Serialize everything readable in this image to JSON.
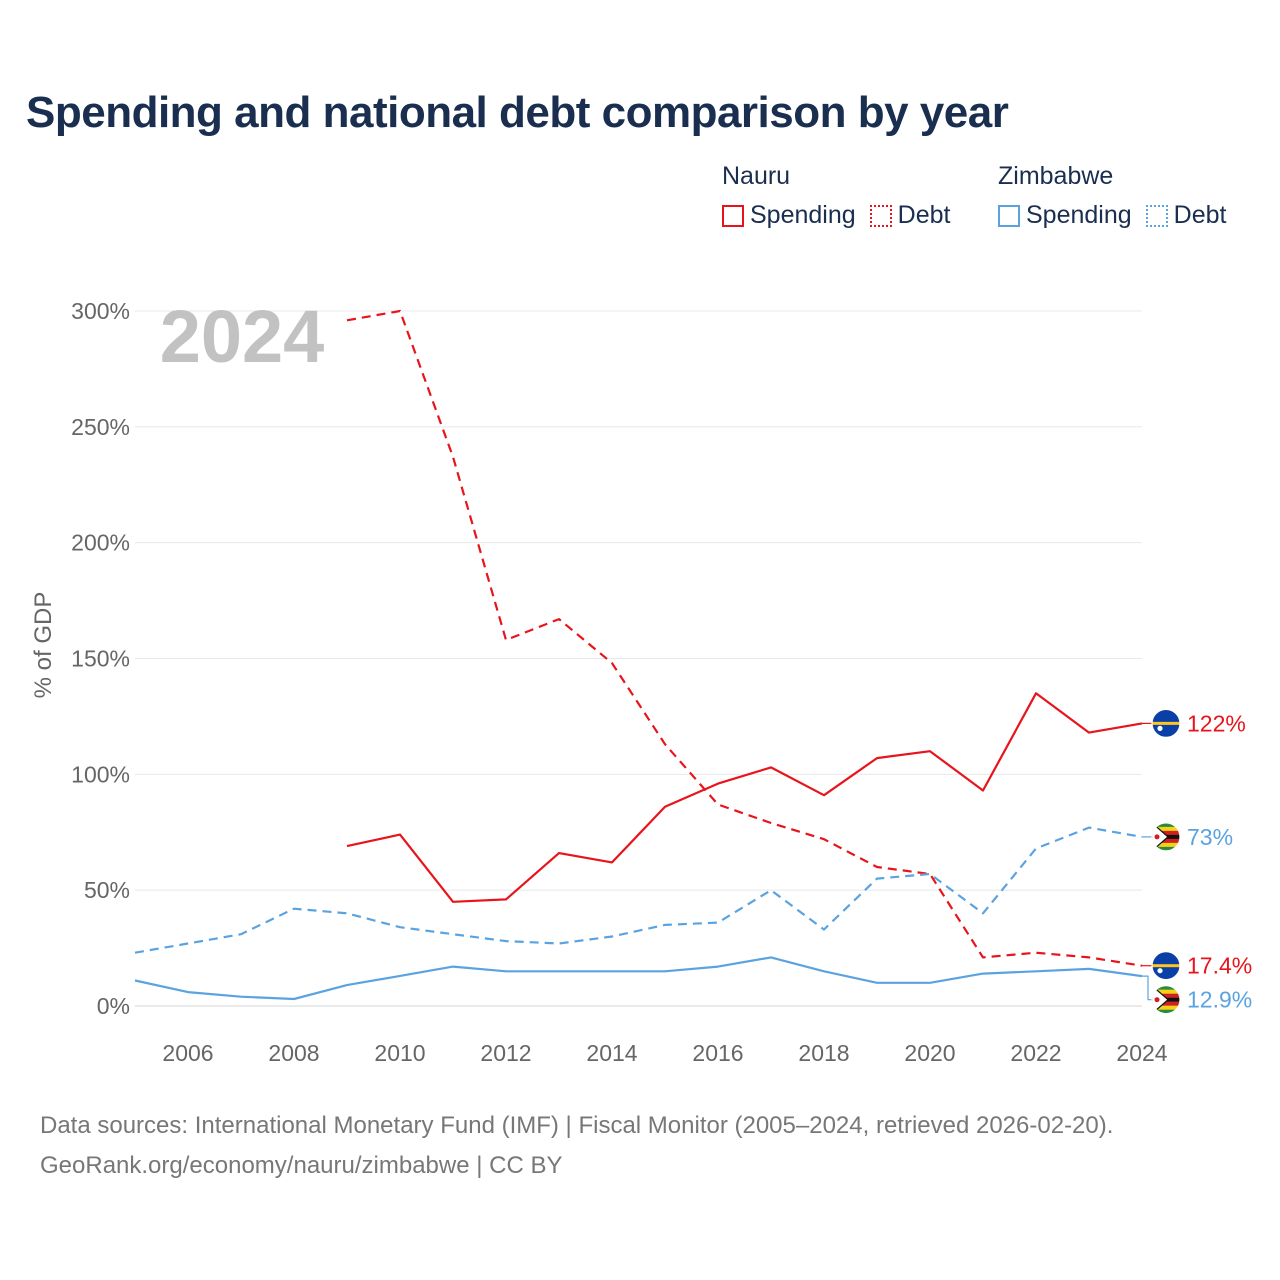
{
  "title": "Spending and national debt comparison by year",
  "legend": {
    "groups": [
      {
        "name": "Nauru",
        "color": "#e8141b",
        "items": [
          {
            "label": "Spending",
            "style": "solid"
          },
          {
            "label": "Debt",
            "style": "dotted"
          }
        ]
      },
      {
        "name": "Zimbabwe",
        "color": "#5ba3e0",
        "items": [
          {
            "label": "Spending",
            "style": "solid"
          },
          {
            "label": "Debt",
            "style": "dotted"
          }
        ]
      }
    ]
  },
  "year_label": "2024",
  "source": {
    "line1": "Data sources: International Monetary Fund (IMF) | Fiscal Monitor (2005–2024, retrieved 2026-02-20).",
    "line2": "GeoRank.org/economy/nauru/zimbabwe | CC BY"
  },
  "chart_data": {
    "type": "line",
    "title": "Spending and national debt comparison by year",
    "xlabel": "",
    "ylabel": "% of GDP",
    "xlim": [
      2005,
      2024
    ],
    "ylim": [
      0,
      300
    ],
    "x_ticks": [
      2006,
      2008,
      2010,
      2012,
      2014,
      2016,
      2018,
      2020,
      2022,
      2024
    ],
    "y_ticks": [
      0,
      50,
      100,
      150,
      200,
      250,
      300
    ],
    "y_tick_labels": [
      "0%",
      "50%",
      "100%",
      "150%",
      "200%",
      "250%",
      "300%"
    ],
    "grid": true,
    "series": [
      {
        "name": "Nauru Debt",
        "country": "Nauru",
        "metric": "Debt",
        "color": "#e8141b",
        "dash": "dashed",
        "x": [
          2009,
          2010,
          2011,
          2012,
          2013,
          2014,
          2015,
          2016,
          2017,
          2018,
          2019,
          2020,
          2021,
          2022,
          2023,
          2024
        ],
        "y": [
          296,
          300,
          237,
          158,
          167,
          148,
          113,
          87,
          79,
          72,
          60,
          57,
          21,
          23,
          21,
          17.4
        ],
        "end_label": "17.4%",
        "flag": "nauru"
      },
      {
        "name": "Nauru Spending",
        "country": "Nauru",
        "metric": "Spending",
        "color": "#e8141b",
        "dash": "solid",
        "x": [
          2009,
          2010,
          2011,
          2012,
          2013,
          2014,
          2015,
          2016,
          2017,
          2018,
          2019,
          2020,
          2021,
          2022,
          2023,
          2024
        ],
        "y": [
          69,
          74,
          45,
          46,
          66,
          62,
          86,
          96,
          103,
          91,
          107,
          110,
          93,
          135,
          118,
          122
        ],
        "end_label": "122%",
        "flag": "nauru"
      },
      {
        "name": "Zimbabwe Debt",
        "country": "Zimbabwe",
        "metric": "Debt",
        "color": "#5ba3e0",
        "dash": "dashed",
        "x": [
          2005,
          2006,
          2007,
          2008,
          2009,
          2010,
          2011,
          2012,
          2013,
          2014,
          2015,
          2016,
          2017,
          2018,
          2019,
          2020,
          2021,
          2022,
          2023,
          2024
        ],
        "y": [
          23,
          27,
          31,
          42,
          40,
          34,
          31,
          28,
          27,
          30,
          35,
          36,
          50,
          33,
          55,
          57,
          40,
          68,
          77,
          73
        ],
        "end_label": "73%",
        "flag": "zimbabwe"
      },
      {
        "name": "Zimbabwe Spending",
        "country": "Zimbabwe",
        "metric": "Spending",
        "color": "#5ba3e0",
        "dash": "solid",
        "x": [
          2005,
          2006,
          2007,
          2008,
          2009,
          2010,
          2011,
          2012,
          2013,
          2014,
          2015,
          2016,
          2017,
          2018,
          2019,
          2020,
          2021,
          2022,
          2023,
          2024
        ],
        "y": [
          11,
          6,
          4,
          3,
          9,
          13,
          17,
          15,
          15,
          15,
          15,
          17,
          21,
          15,
          10,
          10,
          14,
          15,
          16,
          12.9
        ],
        "end_label": "12.9%",
        "flag": "zimbabwe"
      }
    ]
  }
}
